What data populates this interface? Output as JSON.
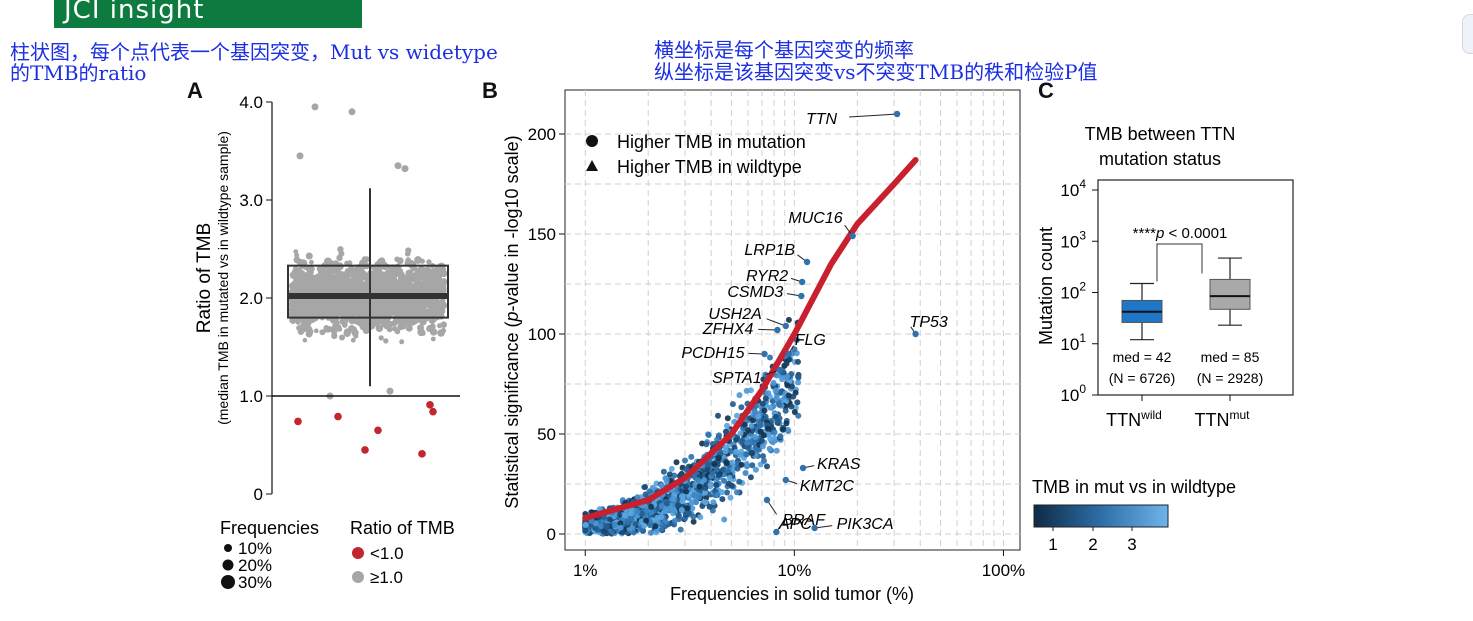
{
  "logo_text": "JCI insight",
  "annotations": {
    "left_line1": "柱状图，每个点代表一个基因突变，Mut vs widetype",
    "left_line2": "的TMB的ratio",
    "right_line1": "横坐标是每个基因突变的频率",
    "right_line2": "纵坐标是该基因突变vs不突变TMB的秩和检验P值"
  },
  "colors": {
    "grey_points": "#a6a6a6",
    "red_points": "#c1272d",
    "trend_line": "#c8202f",
    "box_blue": "#1f77c8",
    "box_grey": "#a9a9a9",
    "scatter_dark": "#16324f",
    "scatter_light": "#5aa6e0"
  },
  "chart_data": [
    {
      "panel": "A",
      "type": "scatter",
      "ylabel": "Ratio of TMB",
      "ylabel_sub": "(median TMB in mutated vs in wildtype sample)",
      "ylim": [
        0,
        4.0
      ],
      "y_ticks": [
        {
          "v": 0,
          "label": "0"
        },
        {
          "v": 1,
          "label": "1.0"
        },
        {
          "v": 2,
          "label": "2.0"
        },
        {
          "v": 3,
          "label": "3.0"
        },
        {
          "v": 4,
          "label": "4.0"
        }
      ],
      "reference_line": 1.0,
      "box": {
        "q1": 1.8,
        "median": 2.02,
        "q3": 2.33,
        "whisker_low": 1.1,
        "whisker_high": 3.12
      },
      "red_points": [
        0.74,
        0.79,
        0.65,
        0.45,
        0.41,
        0.91,
        0.84
      ],
      "grey_outliers": [
        3.95,
        3.9,
        3.45,
        3.35,
        3.32,
        1.0,
        1.05
      ],
      "legend_size_title": "Frequencies",
      "legend_sizes": [
        "10%",
        "20%",
        "30%"
      ],
      "legend_color_title": "Ratio of TMB",
      "legend_colors": [
        "<1.0",
        "≥1.0"
      ]
    },
    {
      "panel": "B",
      "type": "scatter",
      "xlabel": "Frequencies in solid tumor (%)",
      "ylabel_pre": "Statistical significance (",
      "ylabel_italic": "p",
      "ylabel_post": "-value in -log10 scale)",
      "x_scale": "log",
      "xlim": [
        0.8,
        120
      ],
      "ylim": [
        -8,
        222
      ],
      "x_ticks": [
        {
          "v": 1,
          "label": "1%"
        },
        {
          "v": 10,
          "label": "10%"
        },
        {
          "v": 100,
          "label": "100%"
        }
      ],
      "y_ticks": [
        {
          "v": 0,
          "label": "0"
        },
        {
          "v": 50,
          "label": "50"
        },
        {
          "v": 100,
          "label": "100"
        },
        {
          "v": 150,
          "label": "150"
        },
        {
          "v": 200,
          "label": "200"
        }
      ],
      "grid": true,
      "legend_shapes": [
        "Higher TMB in mutation",
        "Higher TMB in wildtype"
      ],
      "colorbar_title": "TMB in mut vs in wildtype",
      "colorbar_ticks": [
        "1",
        "2",
        "3"
      ],
      "trend": [
        [
          1.0,
          8
        ],
        [
          2,
          17
        ],
        [
          3,
          28
        ],
        [
          5,
          50
        ],
        [
          7,
          72
        ],
        [
          10,
          100
        ],
        [
          15,
          135
        ],
        [
          20,
          155
        ],
        [
          30,
          175
        ],
        [
          38,
          187
        ]
      ],
      "labeled_genes": [
        {
          "gene": "TTN",
          "x": 31,
          "y": 210
        },
        {
          "gene": "MUC16",
          "x": 19,
          "y": 149
        },
        {
          "gene": "LRP1B",
          "x": 11.5,
          "y": 136
        },
        {
          "gene": "RYR2",
          "x": 10.9,
          "y": 126
        },
        {
          "gene": "CSMD3",
          "x": 10.8,
          "y": 119
        },
        {
          "gene": "USH2A",
          "x": 9.1,
          "y": 104
        },
        {
          "gene": "ZFHX4",
          "x": 8.3,
          "y": 102
        },
        {
          "gene": "FLG",
          "x": 9.4,
          "y": 90
        },
        {
          "gene": "PCDH15",
          "x": 7.2,
          "y": 90
        },
        {
          "gene": "SPTA1",
          "x": 8.5,
          "y": 82
        },
        {
          "gene": "TP53",
          "x": 38,
          "y": 100
        },
        {
          "gene": "KRAS",
          "x": 11,
          "y": 33
        },
        {
          "gene": "KMT2C",
          "x": 9.1,
          "y": 27
        },
        {
          "gene": "APC",
          "x": 7.4,
          "y": 17
        },
        {
          "gene": "BRAF",
          "x": 8.2,
          "y": 1
        },
        {
          "gene": "PIK3CA",
          "x": 12.5,
          "y": 3
        }
      ]
    },
    {
      "panel": "C",
      "type": "box",
      "title_line1": "TMB between TTN",
      "title_line2": "mutation status",
      "ylabel": "Mutation count",
      "y_scale": "log",
      "ylim": [
        1,
        10000
      ],
      "y_ticks": [
        {
          "base": "10",
          "exp": "0"
        },
        {
          "base": "10",
          "exp": "1"
        },
        {
          "base": "10",
          "exp": "2"
        },
        {
          "base": "10",
          "exp": "3"
        },
        {
          "base": "10",
          "exp": "4"
        }
      ],
      "categories": [
        {
          "base": "TTN",
          "sup": "wild",
          "median": 42,
          "q1": 26,
          "q3": 70,
          "whisker_low": 12,
          "whisker_high": 150,
          "med_label": "med = 42",
          "n_label": "(N = 6726)"
        },
        {
          "base": "TTN",
          "sup": "mut",
          "median": 85,
          "q1": 47,
          "q3": 180,
          "whisker_low": 23,
          "whisker_high": 470,
          "med_label": "med = 85",
          "n_label": "(N = 2928)"
        }
      ],
      "significance_stars": "****",
      "significance_p": "p",
      "significance_text": " < 0.0001"
    }
  ]
}
